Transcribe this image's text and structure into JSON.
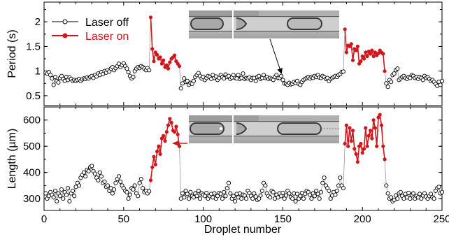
{
  "chart_data": [
    {
      "type": "line",
      "panel": "top",
      "xlabel": "",
      "ylabel": "Period (s)",
      "xlim": [
        0,
        250
      ],
      "ylim": [
        0.3,
        2.4
      ],
      "yticks": [
        "0.5",
        "1",
        "1.5",
        "2"
      ],
      "legend": {
        "placement": "top-left"
      },
      "series": [
        {
          "name": "Laser off",
          "color": "#000000",
          "marker": "open-circle",
          "x": [
            1,
            2,
            3,
            4,
            5,
            6,
            7,
            8,
            9,
            10,
            11,
            12,
            13,
            14,
            15,
            16,
            17,
            18,
            19,
            20,
            21,
            22,
            23,
            24,
            25,
            26,
            27,
            28,
            29,
            30,
            31,
            32,
            33,
            34,
            35,
            36,
            37,
            38,
            39,
            40,
            41,
            42,
            43,
            44,
            45,
            46,
            47,
            48,
            49,
            50,
            51,
            52,
            53,
            54,
            55,
            56,
            57,
            58,
            59,
            60,
            61,
            62,
            63,
            64,
            65,
            66,
            86,
            87,
            88,
            89,
            90,
            91,
            92,
            93,
            94,
            95,
            96,
            97,
            98,
            99,
            100,
            101,
            102,
            103,
            104,
            105,
            106,
            107,
            108,
            109,
            110,
            111,
            112,
            113,
            114,
            115,
            116,
            117,
            118,
            119,
            120,
            121,
            122,
            123,
            124,
            125,
            126,
            127,
            128,
            129,
            130,
            131,
            132,
            133,
            134,
            135,
            136,
            137,
            138,
            139,
            140,
            141,
            142,
            143,
            144,
            145,
            146,
            147,
            148,
            149,
            150,
            151,
            152,
            153,
            154,
            155,
            156,
            157,
            158,
            159,
            160,
            161,
            162,
            163,
            164,
            165,
            166,
            167,
            168,
            169,
            170,
            171,
            172,
            173,
            174,
            175,
            176,
            177,
            178,
            179,
            180,
            181,
            182,
            183,
            184,
            185,
            186,
            187,
            188,
            215,
            216,
            217,
            218,
            219,
            220,
            221,
            222,
            223,
            224,
            225,
            226,
            227,
            228,
            229,
            230,
            231,
            232,
            233,
            234,
            235,
            236,
            237,
            238,
            239,
            240,
            241,
            242,
            243,
            244,
            245,
            246,
            247,
            248,
            249,
            250
          ],
          "y": [
            0.97,
            0.95,
            0.98,
            0.92,
            0.85,
            0.72,
            0.88,
            0.8,
            0.77,
            0.86,
            0.9,
            0.84,
            0.8,
            0.88,
            0.82,
            0.87,
            0.84,
            0.8,
            0.82,
            0.8,
            0.82,
            0.84,
            0.8,
            0.83,
            0.85,
            0.84,
            0.87,
            0.85,
            0.88,
            0.9,
            0.86,
            0.92,
            0.89,
            0.95,
            0.92,
            0.98,
            0.94,
            1.0,
            0.97,
            1.02,
            0.99,
            1.05,
            1.08,
            1.02,
            1.06,
            1.1,
            1.15,
            1.08,
            1.12,
            1.16,
            1.1,
            1.05,
            0.98,
            0.9,
            0.85,
            0.88,
            1.0,
            1.05,
            1.08,
            1.06,
            1.1,
            1.08,
            1.05,
            1.02,
            1.06,
            1.02,
            0.65,
            0.75,
            0.85,
            0.78,
            0.8,
            0.72,
            0.76,
            0.74,
            0.8,
            0.88,
            0.92,
            0.96,
            0.9,
            0.85,
            0.88,
            0.82,
            0.86,
            0.9,
            0.88,
            0.84,
            0.92,
            0.86,
            0.89,
            0.82,
            0.86,
            0.92,
            0.88,
            0.85,
            0.93,
            0.88,
            0.9,
            0.84,
            0.87,
            0.92,
            0.86,
            0.85,
            0.92,
            0.84,
            0.86,
            0.95,
            0.84,
            0.86,
            0.85,
            0.87,
            0.82,
            0.86,
            0.86,
            0.8,
            0.88,
            0.9,
            0.84,
            0.86,
            0.92,
            0.86,
            0.88,
            0.84,
            0.86,
            0.84,
            0.82,
            0.88,
            0.92,
            0.86,
            0.86,
            0.9,
            0.82,
            0.75,
            0.74,
            0.72,
            0.76,
            0.73,
            0.74,
            0.78,
            0.76,
            0.8,
            0.74,
            0.72,
            0.78,
            0.82,
            0.84,
            0.86,
            0.88,
            0.85,
            0.88,
            0.86,
            0.9,
            0.88,
            0.92,
            0.87,
            0.86,
            0.9,
            0.88,
            0.84,
            0.86,
            0.8,
            0.84,
            0.86,
            0.88,
            0.9,
            0.88,
            0.92,
            0.94,
            0.98,
            0.99,
            0.75,
            0.68,
            0.82,
            0.78,
            0.92,
            0.95,
            1.02,
            1.05,
            0.82,
            0.85,
            0.88,
            0.9,
            0.86,
            0.84,
            0.88,
            0.86,
            0.92,
            0.9,
            0.86,
            0.88,
            0.84,
            0.88,
            0.86,
            0.82,
            0.9,
            0.86,
            0.88,
            0.84,
            0.8,
            0.82,
            0.78,
            0.74,
            0.7,
            0.78,
            0.72,
            0.8
          ]
        },
        {
          "name": "Laser on",
          "color": "#d0161b",
          "marker": "filled-circle",
          "segments": [
            {
              "x": [
                67,
                68,
                69,
                70,
                71,
                72,
                73,
                74,
                75,
                76,
                77,
                78,
                79,
                80,
                81,
                82,
                83,
                84,
                85
              ],
              "y": [
                2.09,
                1.45,
                1.2,
                1.38,
                1.33,
                1.25,
                1.28,
                1.15,
                1.22,
                1.08,
                1.12,
                1.05,
                1.18,
                1.25,
                1.28,
                1.32,
                1.2,
                1.15,
                1.1
              ]
            },
            {
              "x": [
                189,
                190,
                191,
                192,
                193,
                194,
                195,
                196,
                197,
                198,
                199,
                200,
                201,
                202,
                203,
                204,
                205,
                206,
                207,
                208,
                209,
                210,
                211,
                212,
                213,
                214
              ],
              "y": [
                1.85,
                1.38,
                1.52,
                1.5,
                1.55,
                1.22,
                1.45,
                1.42,
                1.5,
                1.15,
                1.2,
                1.3,
                1.25,
                1.38,
                1.3,
                1.4,
                1.35,
                1.42,
                1.3,
                1.38,
                1.32,
                1.36,
                1.42,
                1.38,
                1.35,
                1.0
              ]
            }
          ]
        }
      ]
    },
    {
      "type": "line",
      "panel": "bottom",
      "xlabel": "Droplet number",
      "ylabel": "Length (µm)",
      "xlim": [
        0,
        250
      ],
      "ylim": [
        255,
        650
      ],
      "yticks": [
        "300",
        "400",
        "500",
        "600"
      ],
      "xticks": [
        "0",
        "50",
        "100",
        "150",
        "200",
        "250"
      ],
      "series": [
        {
          "name": "Laser off",
          "color": "#000000",
          "marker": "open-circle",
          "x": [
            1,
            2,
            3,
            4,
            5,
            6,
            7,
            8,
            9,
            10,
            11,
            12,
            13,
            14,
            15,
            16,
            17,
            18,
            19,
            20,
            21,
            22,
            23,
            24,
            25,
            26,
            27,
            28,
            29,
            30,
            31,
            32,
            33,
            34,
            35,
            36,
            37,
            38,
            39,
            40,
            41,
            42,
            43,
            44,
            45,
            46,
            47,
            48,
            49,
            50,
            51,
            52,
            53,
            54,
            55,
            56,
            57,
            58,
            59,
            60,
            61,
            62,
            63,
            64,
            65,
            66,
            86,
            87,
            88,
            89,
            90,
            91,
            92,
            93,
            94,
            95,
            96,
            97,
            98,
            99,
            100,
            101,
            102,
            103,
            104,
            105,
            106,
            107,
            108,
            109,
            110,
            111,
            112,
            113,
            114,
            115,
            116,
            117,
            118,
            119,
            120,
            121,
            122,
            123,
            124,
            125,
            126,
            127,
            128,
            129,
            130,
            131,
            132,
            133,
            134,
            135,
            136,
            137,
            138,
            139,
            140,
            141,
            142,
            143,
            144,
            145,
            146,
            147,
            148,
            149,
            150,
            151,
            152,
            153,
            154,
            155,
            156,
            157,
            158,
            159,
            160,
            161,
            162,
            163,
            164,
            165,
            166,
            167,
            168,
            169,
            170,
            171,
            172,
            173,
            174,
            175,
            176,
            177,
            178,
            179,
            180,
            181,
            182,
            183,
            184,
            185,
            186,
            187,
            188,
            215,
            216,
            217,
            218,
            219,
            220,
            221,
            222,
            223,
            224,
            225,
            226,
            227,
            228,
            229,
            230,
            231,
            232,
            233,
            234,
            235,
            236,
            237,
            238,
            239,
            240,
            241,
            242,
            243,
            244,
            245,
            246,
            247,
            248,
            249,
            250
          ],
          "y": [
            320,
            300,
            310,
            325,
            315,
            305,
            330,
            290,
            320,
            310,
            335,
            300,
            325,
            315,
            340,
            290,
            320,
            330,
            310,
            345,
            360,
            350,
            380,
            390,
            400,
            385,
            410,
            405,
            420,
            425,
            405,
            395,
            380,
            370,
            400,
            385,
            360,
            365,
            345,
            350,
            330,
            340,
            320,
            335,
            360,
            375,
            385,
            365,
            350,
            340,
            330,
            325,
            300,
            315,
            340,
            335,
            350,
            320,
            310,
            360,
            375,
            340,
            325,
            330,
            320,
            328,
            300,
            320,
            305,
            330,
            318,
            300,
            325,
            310,
            305,
            320,
            310,
            330,
            300,
            320,
            315,
            310,
            322,
            300,
            310,
            318,
            305,
            320,
            300,
            310,
            322,
            318,
            300,
            325,
            310,
            340,
            360,
            320,
            300,
            310,
            290,
            318,
            305,
            320,
            300,
            315,
            312,
            300,
            330,
            322,
            310,
            300,
            320,
            308,
            295,
            300,
            312,
            330,
            360,
            350,
            320,
            310,
            305,
            330,
            325,
            300,
            315,
            305,
            320,
            310,
            322,
            300,
            312,
            330,
            320,
            306,
            300,
            320,
            290,
            318,
            300,
            310,
            322,
            300,
            318,
            330,
            325,
            315,
            300,
            320,
            310,
            330,
            318,
            300,
            325,
            360,
            380,
            350,
            340,
            330,
            300,
            312,
            325,
            315,
            330,
            350,
            380,
            350,
            340,
            350,
            320,
            300,
            305,
            290,
            295,
            312,
            300,
            320,
            325,
            310,
            300,
            318,
            305,
            322,
            300,
            315,
            320,
            300,
            310,
            305,
            318,
            300,
            312,
            320,
            308,
            300,
            310,
            318,
            305,
            300,
            330,
            340,
            345,
            320,
            325
          ]
        },
        {
          "name": "Laser on",
          "color": "#d0161b",
          "marker": "filled-circle",
          "segments": [
            {
              "x": [
                67,
                68,
                69,
                70,
                71,
                72,
                73,
                74,
                75,
                76,
                77,
                78,
                79,
                80,
                81,
                82,
                83,
                84,
                85
              ],
              "y": [
                370,
                420,
                460,
                430,
                480,
                500,
                470,
                530,
                540,
                520,
                555,
                580,
                605,
                590,
                560,
                555,
                575,
                545,
                500
              ]
            },
            {
              "x": [
                189,
                190,
                191,
                192,
                193,
                194,
                195,
                196,
                197,
                198,
                199,
                200,
                201,
                202,
                203,
                204,
                205,
                206,
                207,
                208,
                209,
                210,
                211,
                212,
                213,
                214
              ],
              "y": [
                510,
                580,
                500,
                570,
                520,
                560,
                490,
                470,
                440,
                500,
                510,
                475,
                490,
                570,
                500,
                540,
                560,
                530,
                600,
                570,
                500,
                610,
                620,
                580,
                500,
                450
              ]
            }
          ]
        }
      ]
    }
  ],
  "colors": {
    "laser_off": "#000000",
    "laser_on": "#d0161b",
    "connector": "#8a8a8a",
    "inset_bg": "#b8b8b8"
  }
}
